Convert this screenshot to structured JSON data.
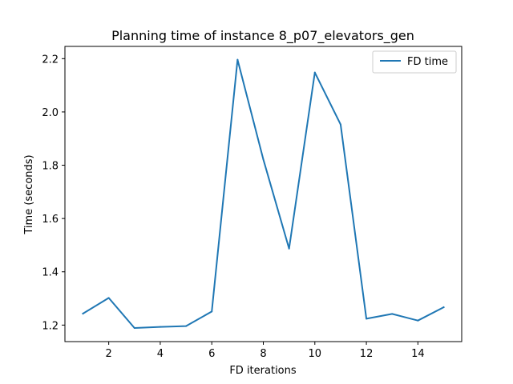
{
  "chart_data": {
    "type": "line",
    "title": "Planning time of instance 8_p07_elevators_gen",
    "xlabel": "FD iterations",
    "ylabel": "Time (seconds)",
    "xlim": [
      0.3,
      15.7
    ],
    "ylim": [
      1.138,
      2.246
    ],
    "xticks": [
      2,
      4,
      6,
      8,
      10,
      12,
      14
    ],
    "yticks": [
      1.2,
      1.4,
      1.6,
      1.8,
      2.0,
      2.2
    ],
    "ytick_labels": [
      "1.2",
      "1.4",
      "1.6",
      "1.8",
      "2.0",
      "2.2"
    ],
    "grid": false,
    "legend_position": "top-right",
    "series": [
      {
        "name": "FD time",
        "color": "#1f77b4",
        "x": [
          1,
          2,
          3,
          4,
          5,
          6,
          7,
          8,
          9,
          10,
          11,
          12,
          13,
          14,
          15
        ],
        "values": [
          1.243,
          1.302,
          1.189,
          1.193,
          1.196,
          1.251,
          2.196,
          1.822,
          1.487,
          2.148,
          1.953,
          1.224,
          1.242,
          1.217,
          1.267
        ]
      }
    ]
  }
}
